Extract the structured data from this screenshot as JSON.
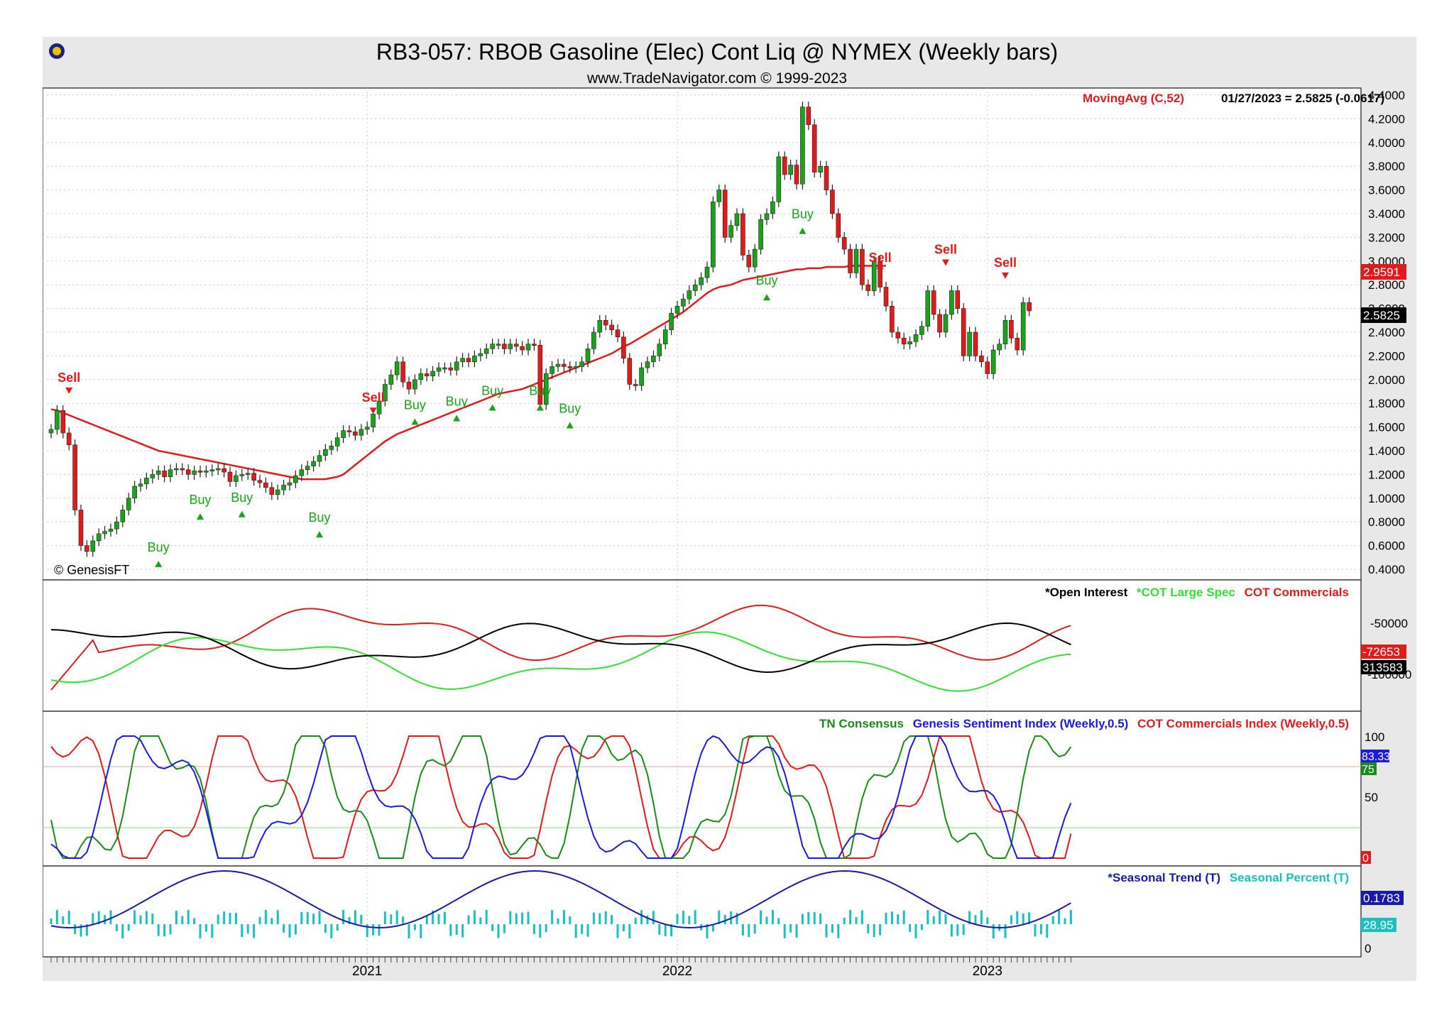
{
  "header": {
    "title": "RB3-057:  RBOB Gasoline (Elec) Cont Liq @ NYMEX  (Weekly bars)",
    "subtitle": "www.TradeNavigator.com © 1999-2023",
    "copyright": "© GenesisFT"
  },
  "colors": {
    "up": "#1aa31a",
    "down": "#e01b1b",
    "ma": "#e01b1b",
    "black": "#000000",
    "green": "#33e033",
    "blue": "#1a1ae0",
    "dgreen": "#1a8a1a",
    "navy": "#1a1aa8",
    "teal": "#18c0c0"
  },
  "panels": {
    "price": {
      "legend": "MovingAvg (C,52)",
      "readout": "01/27/2023 = 2.5825 (-0.0617)",
      "ma_badge": "2.9591",
      "close_badge": "2.5825"
    },
    "cot": {
      "legend": [
        {
          "label": "*Open Interest",
          "color": "#000000"
        },
        {
          "label": "*COT Large Spec",
          "color": "#33e033"
        },
        {
          "label": "COT Commercials",
          "color": "#e01b1b"
        }
      ],
      "badges": [
        "-72653",
        "313583"
      ]
    },
    "sentiment": {
      "legend": [
        {
          "label": "TN Consensus",
          "color": "#1a8a1a"
        },
        {
          "label": "Genesis Sentiment Index (Weekly,0.5)",
          "color": "#1a1ae0"
        },
        {
          "label": "COT Commercials Index (Weekly,0.5)",
          "color": "#e01b1b"
        }
      ],
      "badges": [
        "83.33",
        "75",
        "0"
      ]
    },
    "seasonal": {
      "legend": [
        {
          "label": "*Seasonal Trend (T)",
          "color": "#1a1aa8"
        },
        {
          "label": "Seasonal Percent (T)",
          "color": "#18c0c0"
        }
      ],
      "badges": [
        "0.1783",
        "28.95"
      ]
    }
  },
  "chart_data": {
    "type": "candlestick",
    "title": "RB3-057:  RBOB Gasoline (Elec) Cont Liq @ NYMEX  (Weekly bars)",
    "y_ticks": [
      "4.4000",
      "4.2000",
      "4.0000",
      "3.8000",
      "3.6000",
      "3.4000",
      "3.2000",
      "3.0000",
      "2.8000",
      "2.6000",
      "2.4000",
      "2.2000",
      "2.0000",
      "1.8000",
      "1.6000",
      "1.4000",
      "1.2000",
      "1.0000",
      "0.8000",
      "0.6000",
      "0.4000"
    ],
    "ylim": [
      0.4,
      4.4
    ],
    "x_ticks": [
      "2021",
      "2022",
      "2023"
    ],
    "x_tick_index": [
      53,
      105,
      157
    ],
    "closes": [
      1.58,
      1.74,
      1.55,
      1.45,
      0.9,
      0.6,
      0.55,
      0.64,
      0.7,
      0.72,
      0.74,
      0.8,
      0.9,
      1.0,
      1.1,
      1.12,
      1.17,
      1.2,
      1.23,
      1.18,
      1.24,
      1.25,
      1.24,
      1.2,
      1.23,
      1.22,
      1.23,
      1.24,
      1.25,
      1.22,
      1.14,
      1.19,
      1.2,
      1.21,
      1.15,
      1.13,
      1.09,
      1.03,
      1.07,
      1.11,
      1.13,
      1.19,
      1.24,
      1.27,
      1.31,
      1.36,
      1.41,
      1.44,
      1.51,
      1.57,
      1.56,
      1.53,
      1.58,
      1.6,
      1.71,
      1.82,
      1.96,
      2.04,
      2.15,
      1.98,
      1.92,
      2.0,
      2.05,
      2.03,
      2.07,
      2.1,
      2.1,
      2.08,
      2.15,
      2.18,
      2.15,
      2.2,
      2.22,
      2.26,
      2.3,
      2.3,
      2.26,
      2.3,
      2.28,
      2.25,
      2.3,
      2.29,
      1.79,
      2.05,
      2.11,
      2.13,
      2.11,
      2.1,
      2.11,
      2.15,
      2.26,
      2.4,
      2.5,
      2.46,
      2.42,
      2.36,
      2.18,
      1.96,
      1.95,
      2.1,
      2.15,
      2.2,
      2.3,
      2.42,
      2.56,
      2.62,
      2.68,
      2.75,
      2.8,
      2.86,
      2.95,
      3.5,
      3.6,
      3.2,
      3.3,
      3.4,
      3.05,
      2.95,
      3.1,
      3.35,
      3.4,
      3.5,
      3.88,
      3.73,
      3.81,
      3.65,
      4.3,
      4.15,
      3.75,
      3.8,
      3.6,
      3.4,
      3.2,
      3.1,
      2.9,
      3.1,
      2.8,
      2.75,
      3.0,
      2.78,
      2.62,
      2.4,
      2.35,
      2.3,
      2.32,
      2.38,
      2.45,
      2.75,
      2.55,
      2.4,
      2.55,
      2.75,
      2.6,
      2.2,
      2.4,
      2.2,
      2.15,
      2.05,
      2.25,
      2.3,
      2.5,
      2.35,
      2.25,
      2.65,
      2.58
    ],
    "ma52": [
      1.75,
      1.74,
      1.72,
      1.7,
      1.68,
      1.66,
      1.64,
      1.62,
      1.6,
      1.58,
      1.56,
      1.54,
      1.52,
      1.5,
      1.48,
      1.46,
      1.44,
      1.42,
      1.4,
      1.39,
      1.38,
      1.37,
      1.36,
      1.35,
      1.34,
      1.33,
      1.32,
      1.31,
      1.3,
      1.29,
      1.28,
      1.27,
      1.26,
      1.25,
      1.24,
      1.23,
      1.22,
      1.21,
      1.2,
      1.19,
      1.18,
      1.17,
      1.16,
      1.16,
      1.16,
      1.16,
      1.16,
      1.17,
      1.18,
      1.2,
      1.24,
      1.28,
      1.32,
      1.36,
      1.4,
      1.44,
      1.48,
      1.51,
      1.54,
      1.56,
      1.58,
      1.6,
      1.62,
      1.64,
      1.66,
      1.68,
      1.7,
      1.72,
      1.74,
      1.76,
      1.78,
      1.8,
      1.82,
      1.84,
      1.86,
      1.88,
      1.89,
      1.9,
      1.91,
      1.92,
      1.94,
      1.96,
      1.98,
      2.0,
      2.02,
      2.04,
      2.06,
      2.08,
      2.1,
      2.12,
      2.14,
      2.16,
      2.18,
      2.2,
      2.22,
      2.25,
      2.28,
      2.3,
      2.33,
      2.36,
      2.39,
      2.42,
      2.45,
      2.48,
      2.51,
      2.54,
      2.57,
      2.61,
      2.65,
      2.69,
      2.73,
      2.76,
      2.78,
      2.79,
      2.8,
      2.82,
      2.84,
      2.85,
      2.86,
      2.87,
      2.88,
      2.89,
      2.9,
      2.91,
      2.92,
      2.93,
      2.93,
      2.94,
      2.94,
      2.94,
      2.95,
      2.95,
      2.95,
      2.95,
      2.96,
      2.96,
      2.96,
      2.96,
      2.96,
      2.96,
      2.96
    ],
    "signals": [
      {
        "label": "Sell",
        "bar": 3,
        "price": 1.85,
        "kind": "sell"
      },
      {
        "label": "Buy",
        "bar": 18,
        "price": 0.55,
        "kind": "buy"
      },
      {
        "label": "Buy",
        "bar": 25,
        "price": 0.95,
        "kind": "buy"
      },
      {
        "label": "Buy",
        "bar": 32,
        "price": 0.97,
        "kind": "buy"
      },
      {
        "label": "Buy",
        "bar": 45,
        "price": 0.8,
        "kind": "buy"
      },
      {
        "label": "Sell",
        "bar": 54,
        "price": 1.68,
        "kind": "sell"
      },
      {
        "label": "Buy",
        "bar": 61,
        "price": 1.75,
        "kind": "buy"
      },
      {
        "label": "Buy",
        "bar": 68,
        "price": 1.78,
        "kind": "buy"
      },
      {
        "label": "Buy",
        "bar": 74,
        "price": 1.87,
        "kind": "buy"
      },
      {
        "label": "Buy",
        "bar": 82,
        "price": 1.87,
        "kind": "buy"
      },
      {
        "label": "Buy",
        "bar": 87,
        "price": 1.72,
        "kind": "buy"
      },
      {
        "label": "Buy",
        "bar": 120,
        "price": 2.8,
        "kind": "buy"
      },
      {
        "label": "Buy",
        "bar": 126,
        "price": 3.36,
        "kind": "buy"
      },
      {
        "label": "Sell",
        "bar": 139,
        "price": 2.86,
        "kind": "sell"
      },
      {
        "label": "Sell",
        "bar": 150,
        "price": 2.93,
        "kind": "sell"
      },
      {
        "label": "Sell",
        "bar": 160,
        "price": 2.82,
        "kind": "sell"
      }
    ]
  }
}
